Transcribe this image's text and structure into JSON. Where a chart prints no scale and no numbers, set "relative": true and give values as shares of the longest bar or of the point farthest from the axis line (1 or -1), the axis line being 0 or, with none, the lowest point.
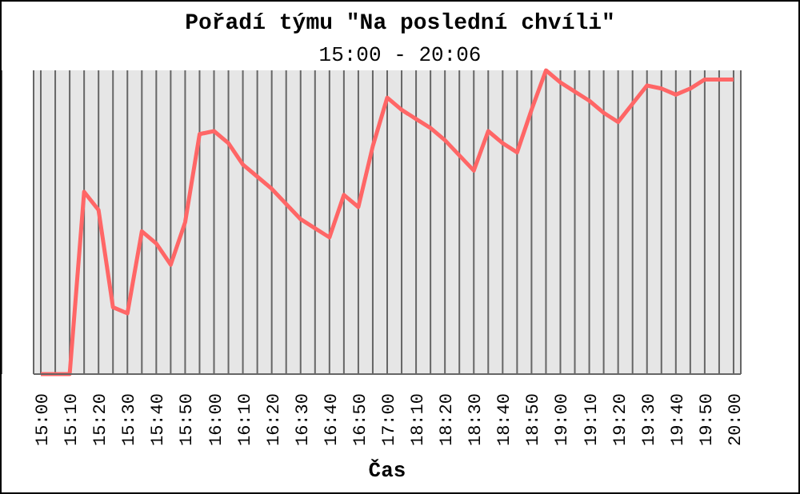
{
  "chart_data": {
    "type": "line",
    "title": "Pořadí týmu \"Na poslední chvíli\"",
    "subtitle": "15:00 - 20:06",
    "xlabel": "Čas",
    "relative": true,
    "grid": "x",
    "marker": "none",
    "legend": false,
    "categories": [
      "15:00",
      null,
      "15:10",
      null,
      "15:20",
      null,
      "15:30",
      null,
      "15:40",
      null,
      "15:50",
      null,
      "16:00",
      null,
      "16:10",
      null,
      "16:20",
      null,
      "16:30",
      null,
      "16:40",
      null,
      "16:50",
      null,
      "17:00",
      null,
      "18:10",
      null,
      "18:20",
      null,
      "18:30",
      null,
      "18:40",
      null,
      "18:50",
      null,
      "19:00",
      null,
      "19:10",
      null,
      "19:20",
      null,
      "19:30",
      null,
      "19:40",
      null,
      "19:50",
      null,
      "20:00"
    ],
    "series": [
      {
        "color": "#ff6666",
        "values": [
          0,
          0,
          0,
          0.6,
          0.54,
          0.22,
          0.2,
          0.47,
          0.43,
          0.36,
          0.5,
          0.79,
          0.8,
          0.76,
          0.69,
          0.65,
          0.61,
          0.56,
          0.51,
          0.48,
          0.45,
          0.59,
          0.55,
          0.75,
          0.91,
          0.87,
          0.84,
          0.81,
          0.77,
          0.72,
          0.67,
          0.8,
          0.76,
          0.73,
          0.87,
          1,
          0.96,
          0.93,
          0.9,
          0.86,
          0.83,
          0.89,
          0.95,
          0.94,
          0.92,
          0.94,
          0.97,
          0.97,
          0.97
        ]
      }
    ]
  }
}
